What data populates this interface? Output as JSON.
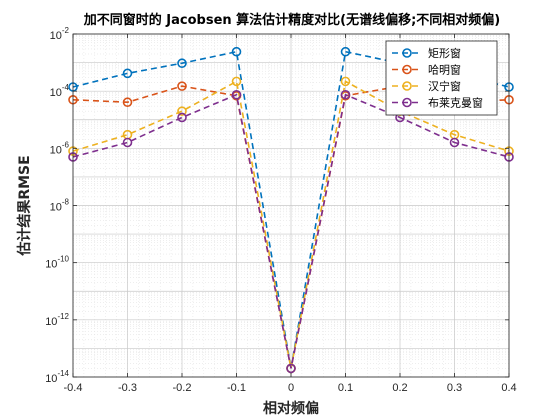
{
  "chart_data": {
    "type": "line",
    "title": "加不同窗时的 Jacobsen 算法估计精度对比(无谱线偏移;不同相对频偏)",
    "xlabel": "相对频偏",
    "ylabel": "估计结果RMSE",
    "x": [
      -0.4,
      -0.3,
      -0.2,
      -0.1,
      0,
      0.1,
      0.2,
      0.3,
      0.4
    ],
    "xlim": [
      -0.4,
      0.4
    ],
    "ylim": [
      1e-14,
      0.01
    ],
    "yscale": "log",
    "x_tick_labels": [
      "-0.4",
      "-0.3",
      "-0.2",
      "-0.1",
      "0",
      "0.1",
      "0.2",
      "0.3",
      "0.4"
    ],
    "y_tick_labels": [
      {
        "base": "10",
        "exp": "-14",
        "value": 1e-14
      },
      {
        "base": "10",
        "exp": "-12",
        "value": 1e-12
      },
      {
        "base": "10",
        "exp": "-10",
        "value": 1e-10
      },
      {
        "base": "10",
        "exp": "-8",
        "value": 1e-08
      },
      {
        "base": "10",
        "exp": "-6",
        "value": 1e-06
      },
      {
        "base": "10",
        "exp": "-4",
        "value": 0.0001
      },
      {
        "base": "10",
        "exp": "-2",
        "value": 0.01
      }
    ],
    "grid": true,
    "minor_grid": true,
    "legend_position": "top-right",
    "series": [
      {
        "name": "矩形窗",
        "color": "#0072BD",
        "values": [
          0.00014,
          0.00042,
          0.00095,
          0.0024,
          2e-14,
          0.0024,
          0.00095,
          0.00042,
          0.00014
        ]
      },
      {
        "name": "哈明窗",
        "color": "#D95319",
        "values": [
          5e-05,
          4.1e-05,
          0.00015,
          6.9e-05,
          2e-14,
          6.9e-05,
          0.00015,
          4.1e-05,
          5e-05
        ]
      },
      {
        "name": "汉宁窗",
        "color": "#EDB120",
        "values": [
          8e-07,
          3e-06,
          2e-05,
          0.00022,
          2e-14,
          0.00022,
          2e-05,
          3e-06,
          8e-07
        ]
      },
      {
        "name": "布莱克曼窗",
        "color": "#7E2F8E",
        "values": [
          5e-07,
          1.6e-06,
          1.2e-05,
          7.5e-05,
          2e-14,
          7.5e-05,
          1.2e-05,
          1.6e-06,
          5e-07
        ]
      }
    ]
  }
}
